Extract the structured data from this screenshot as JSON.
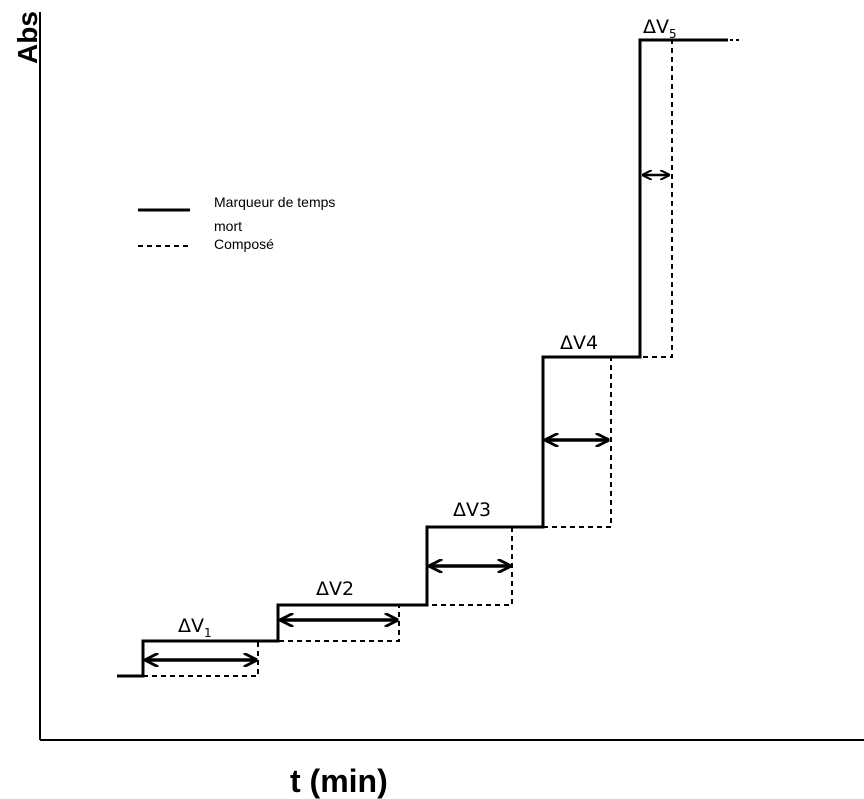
{
  "axes": {
    "y_label": "Abs",
    "x_label": "t (min)"
  },
  "legend": {
    "solid_label_line1": "Marqueur de temps",
    "solid_label_line2": "mort",
    "dashed_label": "Composé"
  },
  "steps": [
    {
      "main": "ΔV",
      "sub": "1"
    },
    {
      "main": "ΔV2",
      "sub": ""
    },
    {
      "main": "ΔV3",
      "sub": ""
    },
    {
      "main": "ΔV4",
      "sub": ""
    },
    {
      "main": "ΔV",
      "sub": "5"
    }
  ]
}
